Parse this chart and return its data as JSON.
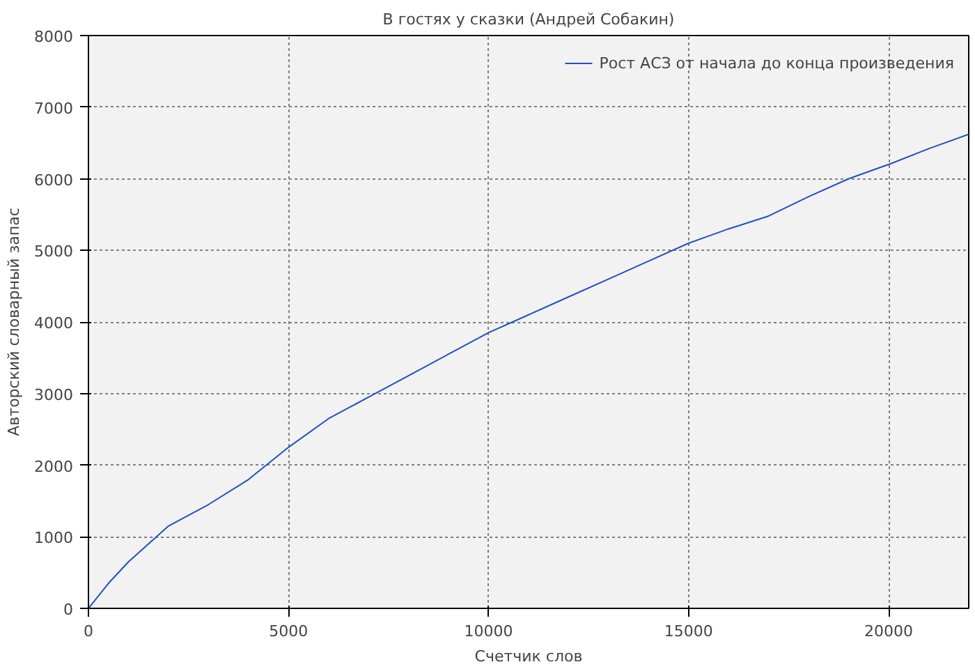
{
  "chart_data": {
    "type": "line",
    "title": "В гостях у сказки (Андрей Собакин)",
    "xlabel": "Счетчик слов",
    "ylabel": "Авторский словарный запас",
    "x": [
      0,
      500,
      1000,
      1500,
      2000,
      3000,
      4000,
      5000,
      6000,
      7000,
      8000,
      9000,
      10000,
      11000,
      12000,
      13000,
      14000,
      15000,
      16000,
      17000,
      18000,
      19000,
      20000,
      21000,
      22000
    ],
    "series": [
      {
        "name": "Рост АСЗ от начала до конца произведения",
        "color": "#2050c0",
        "values": [
          0,
          350,
          650,
          900,
          1150,
          1450,
          1800,
          2250,
          2650,
          2950,
          3250,
          3550,
          3850,
          4100,
          4350,
          4600,
          4850,
          5100,
          5300,
          5480,
          5750,
          6000,
          6200,
          6420,
          6620
        ]
      }
    ],
    "xlim": [
      0,
      22000
    ],
    "ylim": [
      0,
      8000
    ],
    "xticks": [
      0,
      5000,
      10000,
      15000,
      20000
    ],
    "yticks": [
      0,
      1000,
      2000,
      3000,
      4000,
      5000,
      6000,
      7000,
      8000
    ],
    "grid": true,
    "legend": "top right",
    "line_style": "solid"
  }
}
